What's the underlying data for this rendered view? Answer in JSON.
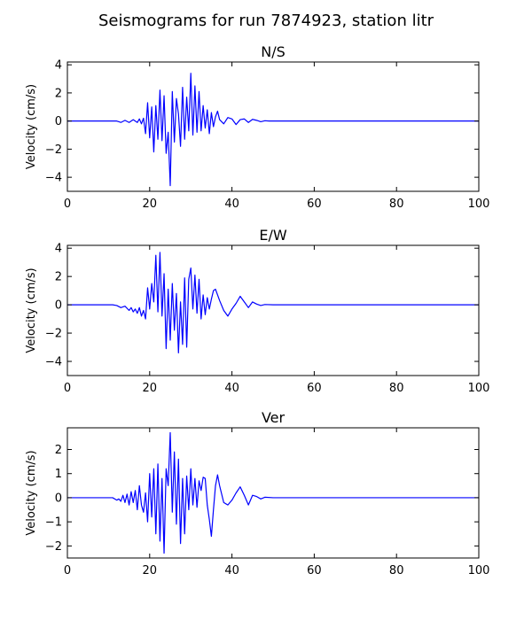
{
  "figure_title": "Seismograms for run 7874923, station litr",
  "colors": {
    "trace": "#0000ff",
    "axes": "#000000",
    "background": "#ffffff"
  },
  "chart_data": [
    {
      "type": "line",
      "title": "N/S",
      "xlabel": "",
      "ylabel": "Velocity (cm/s)",
      "xlim": [
        0,
        100
      ],
      "ylim": [
        -5,
        4.2
      ],
      "xticks": [
        0,
        20,
        40,
        60,
        80,
        100
      ],
      "yticks": [
        -4,
        -2,
        0,
        2,
        4
      ],
      "grid": false,
      "x": [
        0,
        10,
        12,
        13,
        14,
        15,
        16,
        17,
        17.5,
        18,
        18.5,
        19,
        19.5,
        20,
        20.5,
        21,
        21.5,
        22,
        22.5,
        23,
        23.5,
        24,
        24.5,
        25,
        25.5,
        26,
        26.5,
        27,
        27.5,
        28,
        28.5,
        29,
        29.5,
        30,
        30.5,
        31,
        31.5,
        32,
        32.5,
        33,
        33.5,
        34,
        34.5,
        35,
        35.5,
        36,
        36.5,
        37,
        38,
        39,
        40,
        41,
        42,
        43,
        44,
        45,
        46,
        47,
        48,
        49,
        50,
        60,
        100
      ],
      "series": [
        {
          "y": [
            0,
            0,
            0,
            -0.1,
            0.05,
            -0.1,
            0.1,
            -0.1,
            0.15,
            -0.2,
            0.2,
            -0.9,
            1.3,
            -1.2,
            1.0,
            -2.2,
            1.1,
            -1.3,
            2.2,
            -1.4,
            1.8,
            -2.3,
            -0.8,
            -4.6,
            2.1,
            -1.5,
            1.6,
            0.5,
            -1.8,
            2.4,
            -1.3,
            1.7,
            -0.7,
            3.4,
            -1.0,
            2.5,
            -0.8,
            2.1,
            -0.7,
            1.1,
            -0.5,
            0.8,
            -0.9,
            0.6,
            -0.4,
            0.3,
            0.7,
            0.1,
            -0.2,
            0.25,
            0.15,
            -0.25,
            0.1,
            0.15,
            -0.1,
            0.12,
            0.05,
            -0.05,
            0.02,
            0,
            0,
            0,
            0
          ]
        }
      ]
    },
    {
      "type": "line",
      "title": "E/W",
      "xlabel": "",
      "ylabel": "Velocity (cm/s)",
      "xlim": [
        0,
        100
      ],
      "ylim": [
        -5,
        4.2
      ],
      "xticks": [
        0,
        20,
        40,
        60,
        80,
        100
      ],
      "yticks": [
        -4,
        -2,
        0,
        2,
        4
      ],
      "grid": false,
      "x": [
        0,
        11,
        12,
        13,
        14,
        15,
        15.5,
        16,
        16.5,
        17,
        17.5,
        18,
        18.5,
        19,
        19.5,
        20,
        20.5,
        21,
        21.5,
        22,
        22.5,
        23,
        23.5,
        24,
        24.5,
        25,
        25.5,
        26,
        26.5,
        27,
        27.5,
        28,
        28.5,
        29,
        29.5,
        30,
        30.5,
        31,
        31.5,
        32,
        32.5,
        33,
        33.5,
        34,
        34.5,
        35,
        35.5,
        36,
        36.5,
        37,
        38,
        39,
        40,
        41,
        42,
        43,
        44,
        45,
        46,
        47,
        48,
        50,
        100
      ],
      "series": [
        {
          "y": [
            0,
            0,
            -0.05,
            -0.2,
            -0.1,
            -0.4,
            -0.2,
            -0.5,
            -0.3,
            -0.6,
            -0.2,
            -0.8,
            -0.4,
            -1.0,
            1.2,
            -0.3,
            1.5,
            0.2,
            3.5,
            -0.5,
            3.7,
            -0.8,
            2.2,
            -3.1,
            1.1,
            -2.5,
            1.5,
            -1.8,
            0.8,
            -3.4,
            0.2,
            -2.8,
            1.9,
            -3.0,
            1.8,
            2.6,
            -0.3,
            2.1,
            -0.6,
            1.8,
            -1.0,
            0.7,
            -0.7,
            0.5,
            -0.3,
            0.4,
            1.0,
            1.1,
            0.7,
            0.3,
            -0.4,
            -0.8,
            -0.3,
            0.1,
            0.6,
            0.2,
            -0.2,
            0.2,
            0.05,
            -0.05,
            0.02,
            0,
            0
          ]
        }
      ]
    },
    {
      "type": "line",
      "title": "Ver",
      "xlabel": "",
      "ylabel": "Velocity (cm/s)",
      "xlim": [
        0,
        100
      ],
      "ylim": [
        -2.5,
        2.9
      ],
      "xticks": [
        0,
        20,
        40,
        60,
        80,
        100
      ],
      "yticks": [
        -2,
        -1,
        0,
        1,
        2
      ],
      "grid": false,
      "x": [
        0,
        11,
        12,
        12.5,
        13,
        13.5,
        14,
        14.5,
        15,
        15.5,
        16,
        16.5,
        17,
        17.5,
        18,
        18.5,
        19,
        19.5,
        20,
        20.5,
        21,
        21.5,
        22,
        22.5,
        23,
        23.5,
        24,
        24.5,
        25,
        25.5,
        26,
        26.5,
        27,
        27.5,
        28,
        28.5,
        29,
        29.5,
        30,
        30.5,
        31,
        31.5,
        32,
        32.5,
        33,
        33.5,
        34,
        34.5,
        35,
        35.5,
        36,
        36.5,
        37,
        38,
        39,
        40,
        41,
        42,
        43,
        44,
        45,
        46,
        47,
        48,
        50,
        100
      ],
      "series": [
        {
          "y": [
            0,
            0,
            -0.1,
            -0.05,
            -0.15,
            0.1,
            -0.2,
            0.15,
            -0.3,
            0.25,
            -0.2,
            0.3,
            -0.5,
            0.5,
            -0.3,
            -0.6,
            0.2,
            -1.0,
            1.0,
            -0.8,
            1.2,
            -1.5,
            1.4,
            -1.8,
            0.8,
            -2.3,
            1.2,
            0.5,
            2.7,
            -0.6,
            1.9,
            -1.1,
            1.6,
            -1.9,
            0.8,
            -1.5,
            0.9,
            -0.5,
            1.2,
            -0.3,
            0.8,
            -0.4,
            0.7,
            0.3,
            0.85,
            0.8,
            -0.3,
            -0.9,
            -1.6,
            -0.5,
            0.5,
            0.95,
            0.5,
            -0.2,
            -0.3,
            -0.1,
            0.2,
            0.45,
            0.1,
            -0.3,
            0.1,
            0.05,
            -0.05,
            0.02,
            0,
            0
          ]
        }
      ]
    }
  ]
}
